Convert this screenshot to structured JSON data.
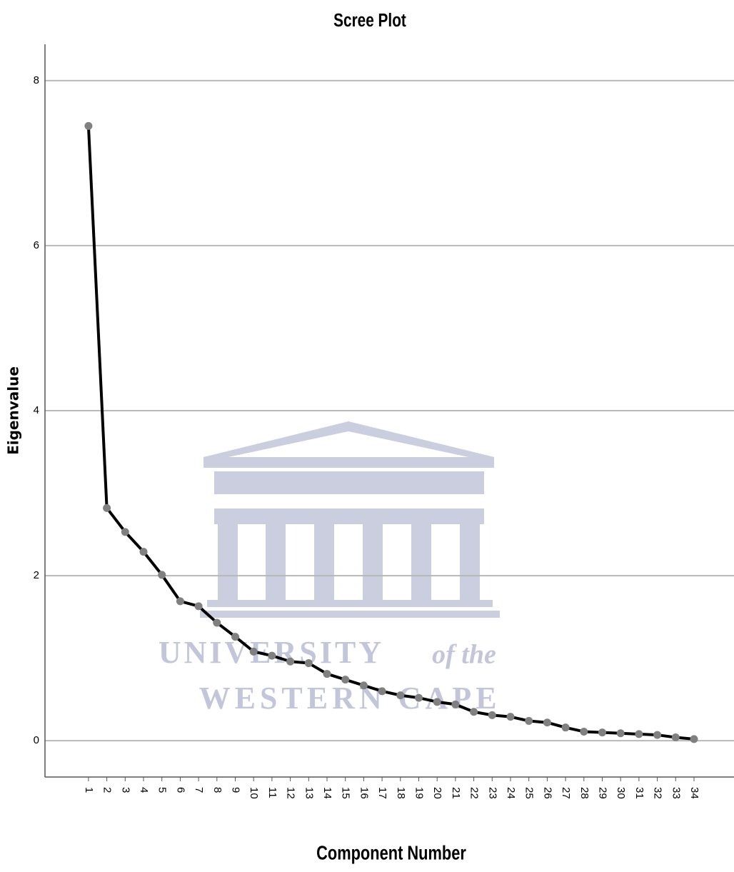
{
  "chart_data": {
    "type": "line",
    "title": "Scree Plot",
    "x_label": "Component Number",
    "y_label": "Eigenvalue",
    "x": [
      1,
      2,
      3,
      4,
      5,
      6,
      7,
      8,
      9,
      10,
      11,
      12,
      13,
      14,
      15,
      16,
      17,
      18,
      19,
      20,
      21,
      22,
      23,
      24,
      25,
      26,
      27,
      28,
      29,
      30,
      31,
      32,
      33,
      34
    ],
    "values": [
      7.45,
      2.82,
      2.53,
      2.29,
      2.01,
      1.69,
      1.63,
      1.43,
      1.26,
      1.08,
      1.03,
      0.96,
      0.94,
      0.81,
      0.74,
      0.67,
      0.6,
      0.55,
      0.52,
      0.47,
      0.44,
      0.35,
      0.31,
      0.29,
      0.24,
      0.22,
      0.16,
      0.11,
      0.1,
      0.09,
      0.08,
      0.07,
      0.04,
      0.02
    ],
    "color": "#000000",
    "marker_color": "#808080",
    "xlim": [
      -1.37,
      36.18
    ],
    "xticks": [
      1,
      2,
      3,
      4,
      5,
      6,
      7,
      8,
      9,
      10,
      11,
      12,
      13,
      14,
      15,
      16,
      17,
      18,
      19,
      20,
      21,
      22,
      23,
      24,
      25,
      26,
      27,
      28,
      29,
      30,
      31,
      32,
      33,
      34
    ],
    "ylim": [
      -0.44,
      8.44
    ],
    "yticks": [
      0,
      2,
      4,
      6,
      8
    ],
    "grid": true,
    "watermark": [
      "UNIVERSITY",
      "of the",
      "WESTERN CAPE"
    ]
  }
}
